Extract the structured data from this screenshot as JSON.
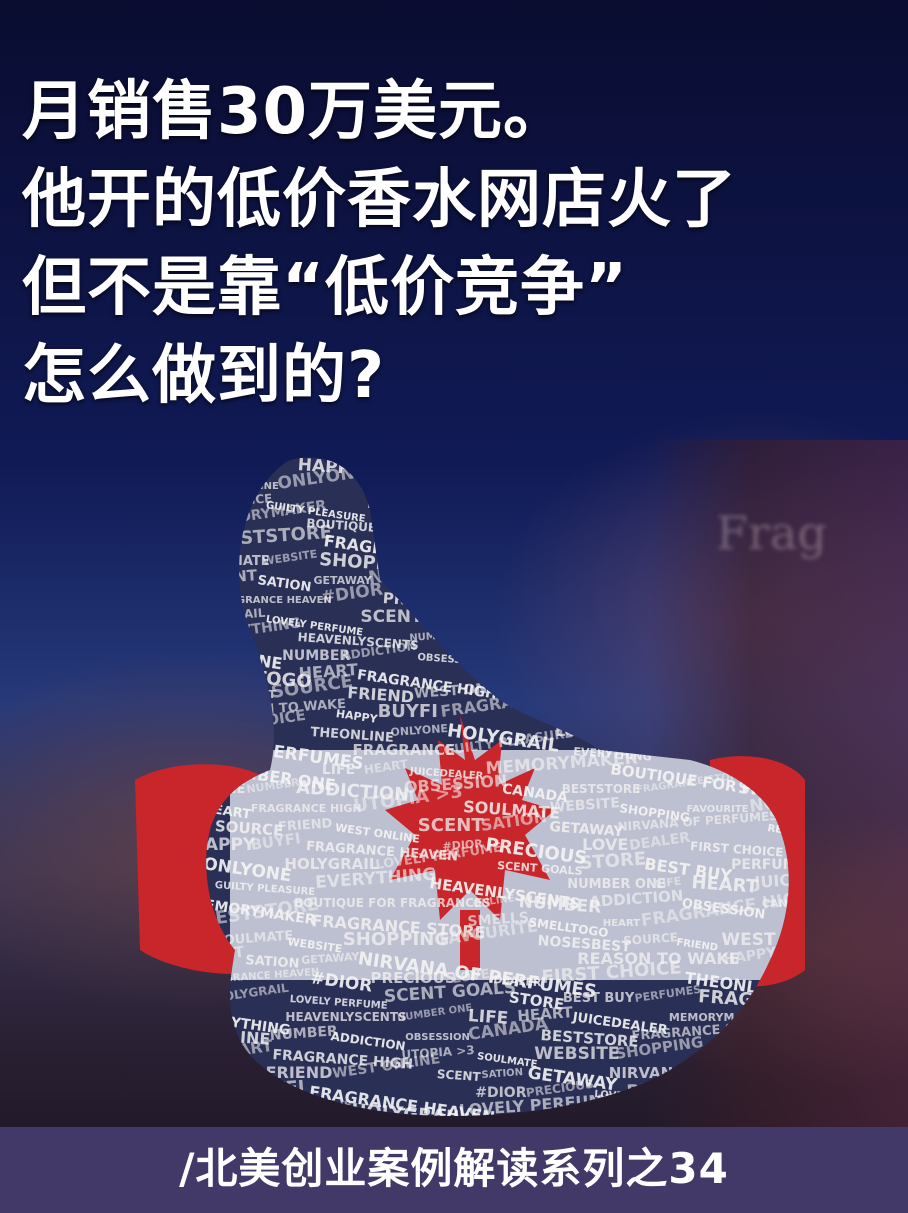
{
  "headline": {
    "line1": "月销售30万美元。",
    "line2": "他开的低价香水网店火了",
    "line3": "但不是靠“低价竞争”",
    "line4": "怎么做到的?"
  },
  "illustration": {
    "subject": "thumbs-up hand made of words with Canadian flag",
    "words": [
      "REASON TO WAKE",
      "HAPPY",
      "BUYFI",
      "FRAGRANCE HEAVEN",
      "#DIOR",
      "PRECIOUS",
      "LOVE",
      "DEALER",
      "FIRST CHOICE",
      "THEONLINE",
      "ONLYONE",
      "HOLYGRAIL",
      "LOVELY PERFUME",
      "SCENT GOALS",
      "STORE",
      "BEST BUY",
      "PERFUMES",
      "FRAGRANCE",
      "GUILTY PLEASURE",
      "EVERYTHING",
      "HEAVENLYSCENTS",
      "NUMBER ONE",
      "LIFE",
      "HEART",
      "JUICEDEALER",
      "MEMORYMAKER",
      "BOUTIQUE FOR FRAGRANCES",
      "ONLINE",
      "NUMBER",
      "ADDICTION",
      "OBSESSION",
      "CANADA",
      "BESTSTORE",
      "FRAGRANCE STORE",
      "SMELLS",
      "SMELLTOGO",
      "HEART",
      "FRAGRANCE HIGH",
      "UTOPIA >3",
      "SOULMATE",
      "WEBSITE",
      "SHOPPING",
      "FAVOURITE",
      "NOSESBEST",
      "SOURCE",
      "FRIEND",
      "WEST ONLINE",
      "SCENT",
      "SATION",
      "GETAWAY",
      "NIRVANA OF PERFUMES"
    ],
    "background_word": "Frag"
  },
  "footer": {
    "text": "/北美创业案例解读系列之34"
  },
  "colors": {
    "background_top": "#0a0c30",
    "background_mid": "#26397a",
    "flag_red": "#c8262a",
    "word_white": "#f4f4f4",
    "footer_bar": "#433968",
    "headline_text": "#ffffff"
  }
}
